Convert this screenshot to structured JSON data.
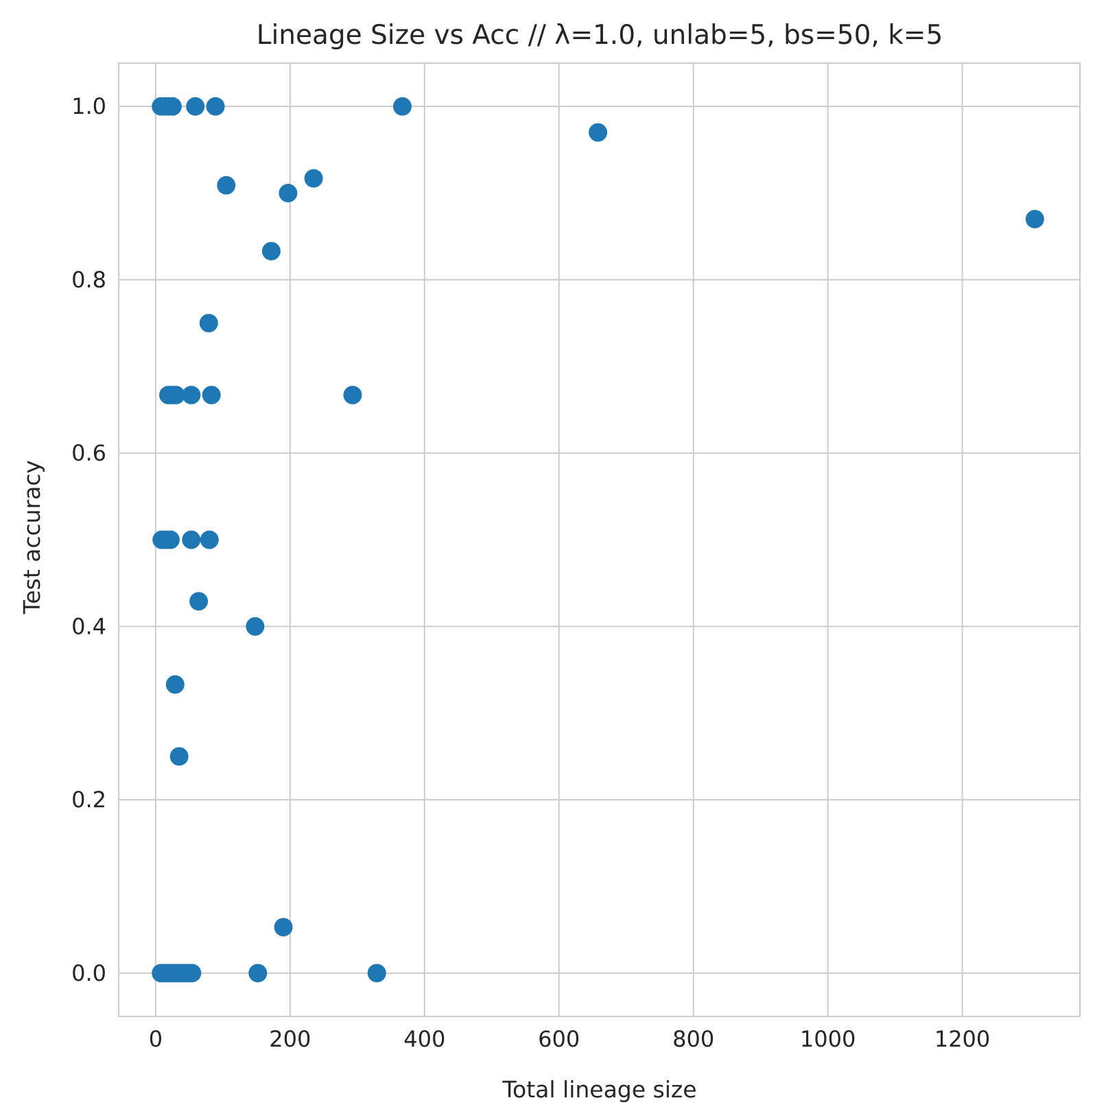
{
  "chart_data": {
    "type": "scatter",
    "title": "Lineage Size vs Acc // λ=1.0, unlab=5, bs=50, k=5",
    "xlabel": "Total lineage size",
    "ylabel": "Test accuracy",
    "xlim": [
      -55,
      1375
    ],
    "ylim": [
      -0.05,
      1.05
    ],
    "xticks": [
      0,
      200,
      400,
      600,
      800,
      1000,
      1200
    ],
    "xtick_labels": [
      "0",
      "200",
      "400",
      "600",
      "800",
      "1000",
      "1200"
    ],
    "yticks": [
      0.0,
      0.2,
      0.4,
      0.6,
      0.8,
      1.0
    ],
    "ytick_labels": [
      "0.0",
      "0.2",
      "0.4",
      "0.6",
      "0.8",
      "1.0"
    ],
    "grid": true,
    "legend": false,
    "marker_color": "#1f77b4",
    "grid_color": "#cccccc",
    "points": [
      {
        "x": 8,
        "y": 1.0
      },
      {
        "x": 14,
        "y": 1.0
      },
      {
        "x": 20,
        "y": 1.0
      },
      {
        "x": 25,
        "y": 1.0
      },
      {
        "x": 59,
        "y": 1.0
      },
      {
        "x": 89,
        "y": 1.0
      },
      {
        "x": 367,
        "y": 1.0
      },
      {
        "x": 658,
        "y": 0.97
      },
      {
        "x": 105,
        "y": 0.909
      },
      {
        "x": 197,
        "y": 0.9
      },
      {
        "x": 235,
        "y": 0.917
      },
      {
        "x": 1308,
        "y": 0.87
      },
      {
        "x": 172,
        "y": 0.833
      },
      {
        "x": 79,
        "y": 0.75
      },
      {
        "x": 19,
        "y": 0.667
      },
      {
        "x": 25,
        "y": 0.667
      },
      {
        "x": 30,
        "y": 0.667
      },
      {
        "x": 53,
        "y": 0.667
      },
      {
        "x": 83,
        "y": 0.667
      },
      {
        "x": 293,
        "y": 0.667
      },
      {
        "x": 9,
        "y": 0.5
      },
      {
        "x": 15,
        "y": 0.5
      },
      {
        "x": 22,
        "y": 0.5
      },
      {
        "x": 53,
        "y": 0.5
      },
      {
        "x": 80,
        "y": 0.5
      },
      {
        "x": 64,
        "y": 0.429
      },
      {
        "x": 148,
        "y": 0.4
      },
      {
        "x": 29,
        "y": 0.333
      },
      {
        "x": 35,
        "y": 0.25
      },
      {
        "x": 190,
        "y": 0.053
      },
      {
        "x": 8,
        "y": 0.0
      },
      {
        "x": 12,
        "y": 0.0
      },
      {
        "x": 16,
        "y": 0.0
      },
      {
        "x": 20,
        "y": 0.0
      },
      {
        "x": 25,
        "y": 0.0
      },
      {
        "x": 30,
        "y": 0.0
      },
      {
        "x": 35,
        "y": 0.0
      },
      {
        "x": 40,
        "y": 0.0
      },
      {
        "x": 45,
        "y": 0.0
      },
      {
        "x": 50,
        "y": 0.0
      },
      {
        "x": 54,
        "y": 0.0
      },
      {
        "x": 152,
        "y": 0.0
      },
      {
        "x": 329,
        "y": 0.0
      }
    ]
  }
}
